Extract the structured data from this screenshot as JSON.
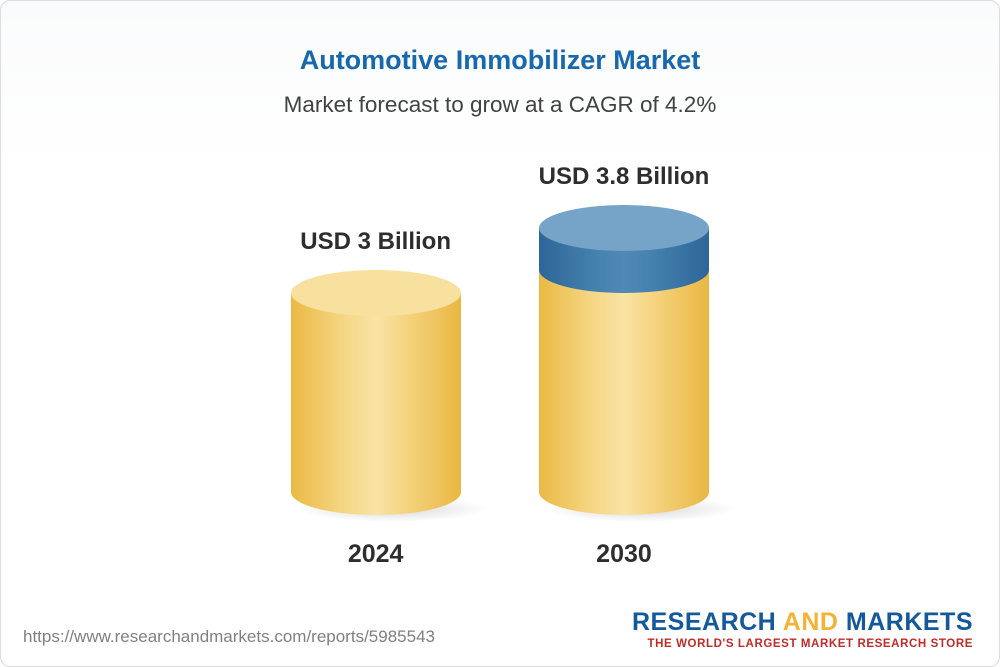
{
  "header": {
    "title": "Automotive Immobilizer Market",
    "subtitle": "Market forecast to grow at a CAGR of 4.2%"
  },
  "chart_data": {
    "type": "bar",
    "variant": "3d-cylinder",
    "title": "Automotive Immobilizer Market",
    "subtitle": "Market forecast to grow at a CAGR of 4.2%",
    "categories": [
      "2024",
      "2030"
    ],
    "values": [
      3,
      3.8
    ],
    "value_labels": [
      "USD 3 Billion",
      "USD 3.8 Billion"
    ],
    "unit": "USD Billion",
    "cagr_percent": 4.2,
    "ylim": [
      0,
      3.8
    ],
    "grid": false,
    "legend": "none",
    "colors": {
      "base_segment": "#f5ce62",
      "base_segment_top": "#f8e09e",
      "growth_segment": "#3b77a9",
      "growth_segment_top": "#76a3c8",
      "title_blue": "#1768ae"
    }
  },
  "footer": {
    "url": "https://www.researchandmarkets.com/reports/5985543",
    "logo": {
      "part1": "RESEARCH",
      "part2": "AND",
      "part3": "MARKETS",
      "tagline": "THE WORLD'S LARGEST MARKET RESEARCH STORE"
    }
  }
}
